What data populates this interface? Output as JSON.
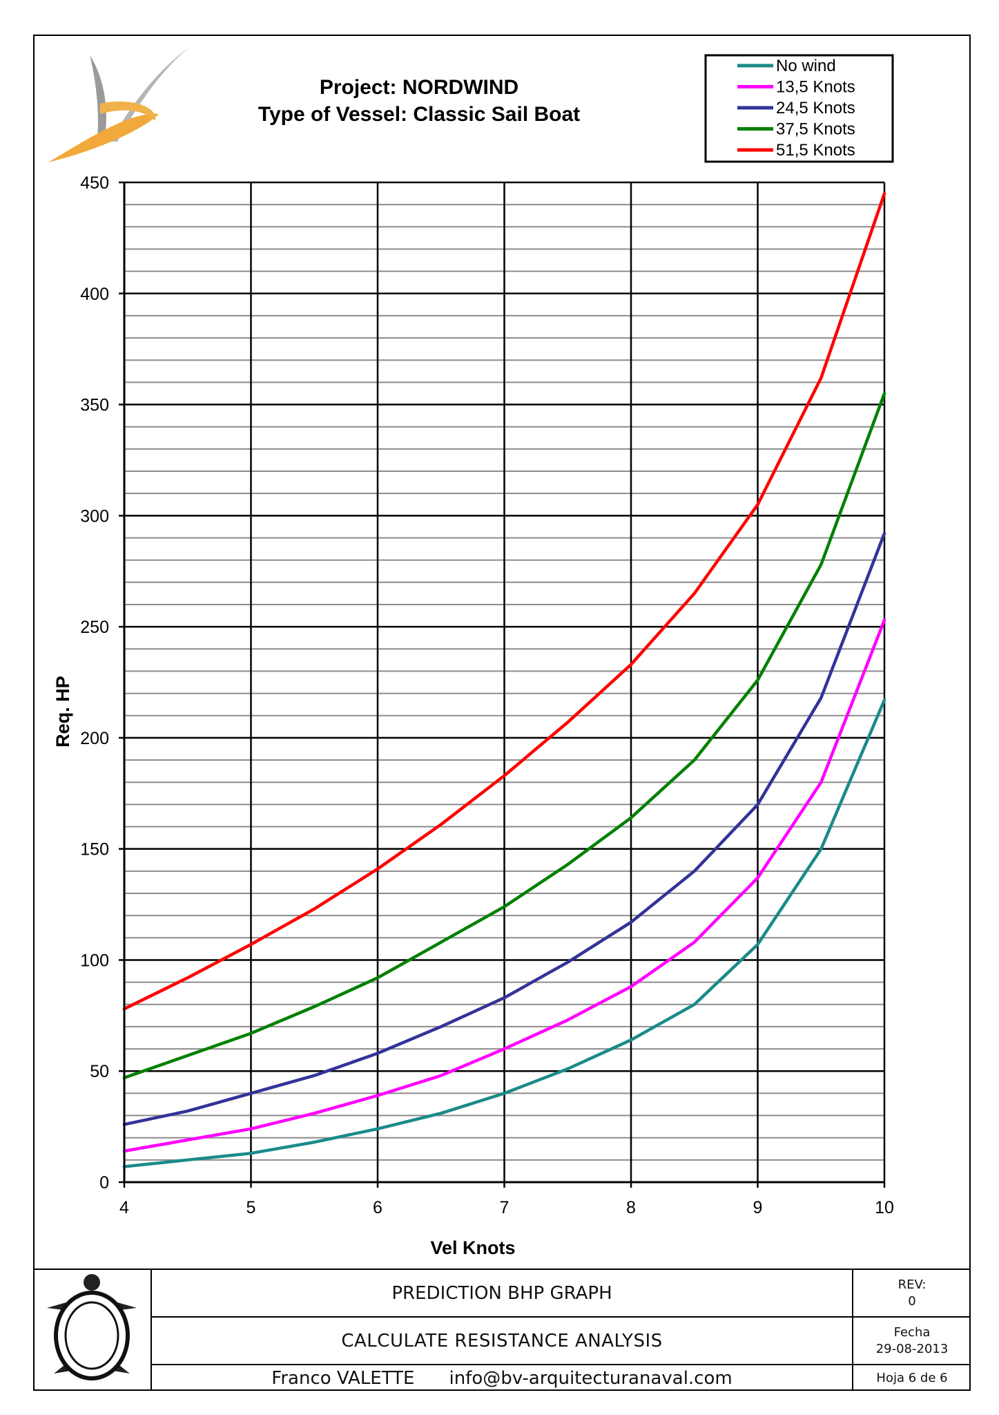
{
  "header": {
    "title_line1": "Project: NORDWIND",
    "title_line2": "Type of Vessel: Classic Sail Boat"
  },
  "chart_data": {
    "type": "line",
    "title": "Project: NORDWIND",
    "subtitle": "Type of Vessel: Classic Sail Boat",
    "xlabel": "Vel Knots",
    "ylabel": "Req. HP",
    "xlim": [
      4,
      10
    ],
    "ylim": [
      0,
      450
    ],
    "xticks": [
      4,
      5,
      6,
      7,
      8,
      9,
      10
    ],
    "yticks": [
      0,
      50,
      100,
      150,
      200,
      250,
      300,
      350,
      400,
      450
    ],
    "y_minor_step": 10,
    "grid": true,
    "legend_position": "top-right",
    "x": [
      4,
      4.5,
      5,
      5.5,
      6,
      6.5,
      7,
      7.5,
      8,
      8.5,
      9,
      9.5,
      10
    ],
    "series": [
      {
        "name": "No wind",
        "color": "#1a8a8a",
        "values": [
          7,
          10,
          13,
          18,
          24,
          31,
          40,
          51,
          64,
          80,
          107,
          150,
          217
        ]
      },
      {
        "name": "13,5 Knots",
        "color": "#ff00ff",
        "values": [
          14,
          19,
          24,
          31,
          39,
          48,
          60,
          73,
          88,
          108,
          137,
          180,
          253
        ]
      },
      {
        "name": "24,5 Knots",
        "color": "#333399",
        "values": [
          26,
          32,
          40,
          48,
          58,
          70,
          83,
          99,
          117,
          140,
          170,
          218,
          292
        ]
      },
      {
        "name": "37,5 Knots",
        "color": "#008000",
        "values": [
          47,
          57,
          67,
          79,
          92,
          108,
          124,
          143,
          164,
          190,
          226,
          278,
          355
        ]
      },
      {
        "name": "51,5 Knots",
        "color": "#ff0000",
        "values": [
          78,
          92,
          107,
          123,
          141,
          161,
          183,
          207,
          233,
          265,
          305,
          362,
          445
        ]
      }
    ]
  },
  "footer": {
    "graph_title": "PREDICTION BHP GRAPH",
    "analysis_title": "CALCULATE RESISTANCE ANALYSIS",
    "author": "Franco VALETTE",
    "email": "info@bv-arquitecturanaval.com",
    "rev_label": "REV:",
    "rev_value": "0",
    "date_label": "Fecha",
    "date_value": "29-08-2013",
    "sheet": "Hoja 6 de 6"
  }
}
